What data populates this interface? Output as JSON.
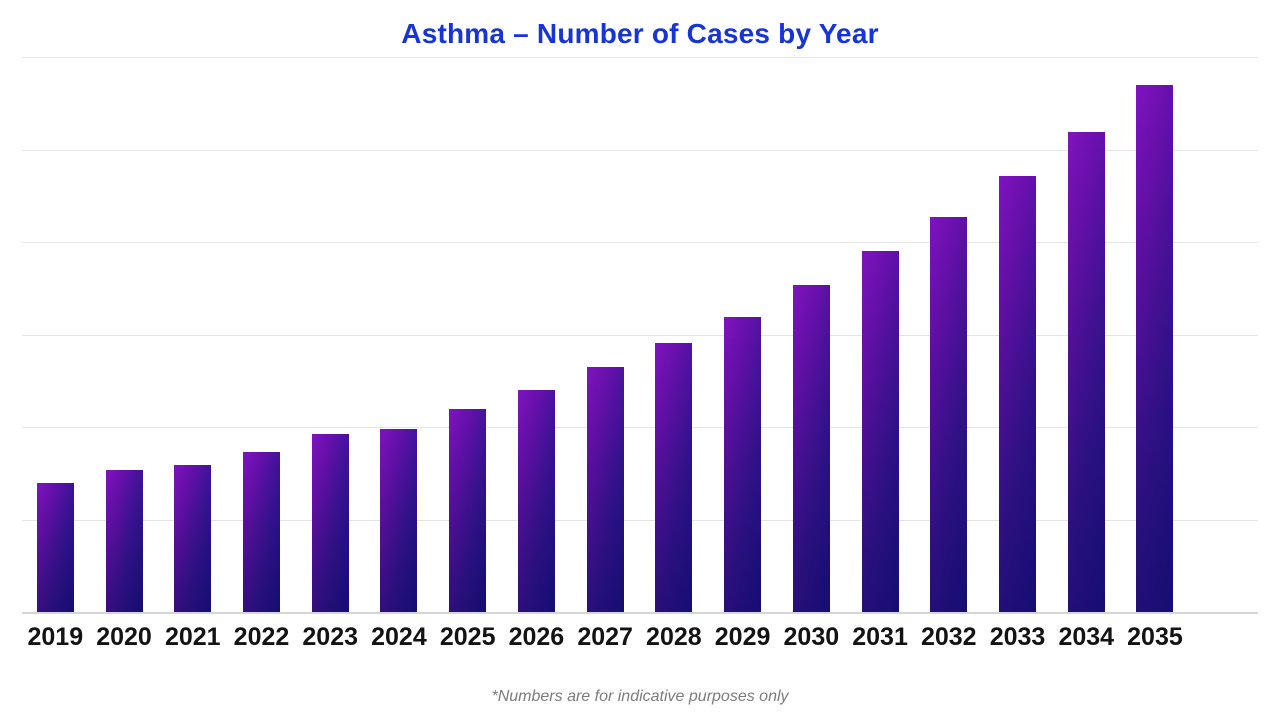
{
  "title": "Asthma – Number of Cases by Year",
  "footnote": "*Numbers are for indicative purposes only",
  "colors": {
    "title_text": "#1634d9",
    "bar_gradient_purple": "#7f13c0",
    "bar_gradient_navy": "#1b118e",
    "gridline": "#e4e4e7",
    "baseline": "#d5d5d8",
    "tick_label_text": "#131313",
    "footnote_text": "#7c7c7c",
    "background": "#ffffff"
  },
  "chart_data": {
    "type": "bar",
    "title": "Asthma – Number of Cases by Year",
    "categories": [
      "2019",
      "2020",
      "2021",
      "2022",
      "2023",
      "2024",
      "2025",
      "2026",
      "2027",
      "2028",
      "2029",
      "2030",
      "2031",
      "2032",
      "2033",
      "2034",
      "2035"
    ],
    "values": [
      139,
      153,
      159,
      173,
      192,
      198,
      220,
      240,
      265,
      291,
      319,
      353,
      390,
      427,
      471,
      519,
      570
    ],
    "values_note": "indicative units estimated from gridlines (1 gridline interval = 100)",
    "xlabel": "",
    "ylabel": "",
    "ylim": [
      0,
      600
    ],
    "y_gridline_step": 100,
    "y_axis_labels_visible": false,
    "grid": "horizontal-only",
    "legend": "none",
    "annotation": "*Numbers are for indicative purposes only"
  }
}
